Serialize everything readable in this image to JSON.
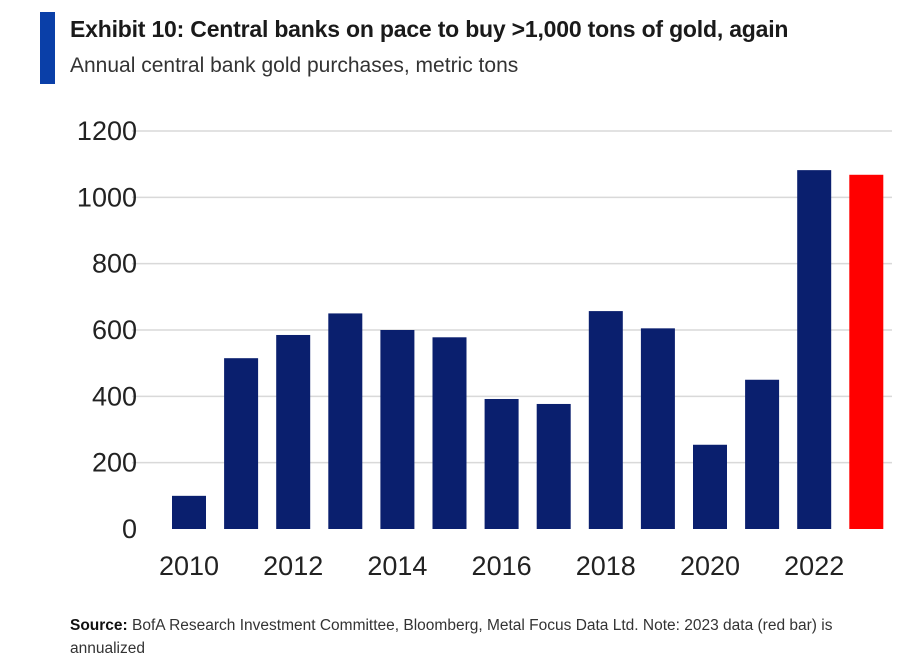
{
  "header": {
    "title": "Exhibit 10: Central banks on pace to buy >1,000 tons of gold, again",
    "subtitle": "Annual central bank gold purchases, metric tons"
  },
  "colors": {
    "accent": "#0a3fa8",
    "bar": "#0a1f6e",
    "highlight": "#ff0000",
    "grid": "#d9d9d9"
  },
  "chart_data": {
    "type": "bar",
    "categories": [
      "2010",
      "2011",
      "2012",
      "2013",
      "2014",
      "2015",
      "2016",
      "2017",
      "2018",
      "2019",
      "2020",
      "2021",
      "2022",
      "2023"
    ],
    "values": [
      100,
      515,
      585,
      650,
      600,
      578,
      392,
      377,
      657,
      605,
      254,
      450,
      1082,
      1068
    ],
    "highlight_index": 13,
    "ylim": [
      0,
      1200
    ],
    "yticks": [
      0,
      200,
      400,
      600,
      800,
      1000,
      1200
    ],
    "xticks": [
      "2010",
      "2012",
      "2014",
      "2016",
      "2018",
      "2020",
      "2022"
    ],
    "grid": true,
    "legend": "none"
  },
  "footer": {
    "source_label": "Source:",
    "source_text": "BofA Research Investment Committee, Bloomberg, Metal Focus Data Ltd. Note: 2023 data (red bar) is annualized"
  }
}
